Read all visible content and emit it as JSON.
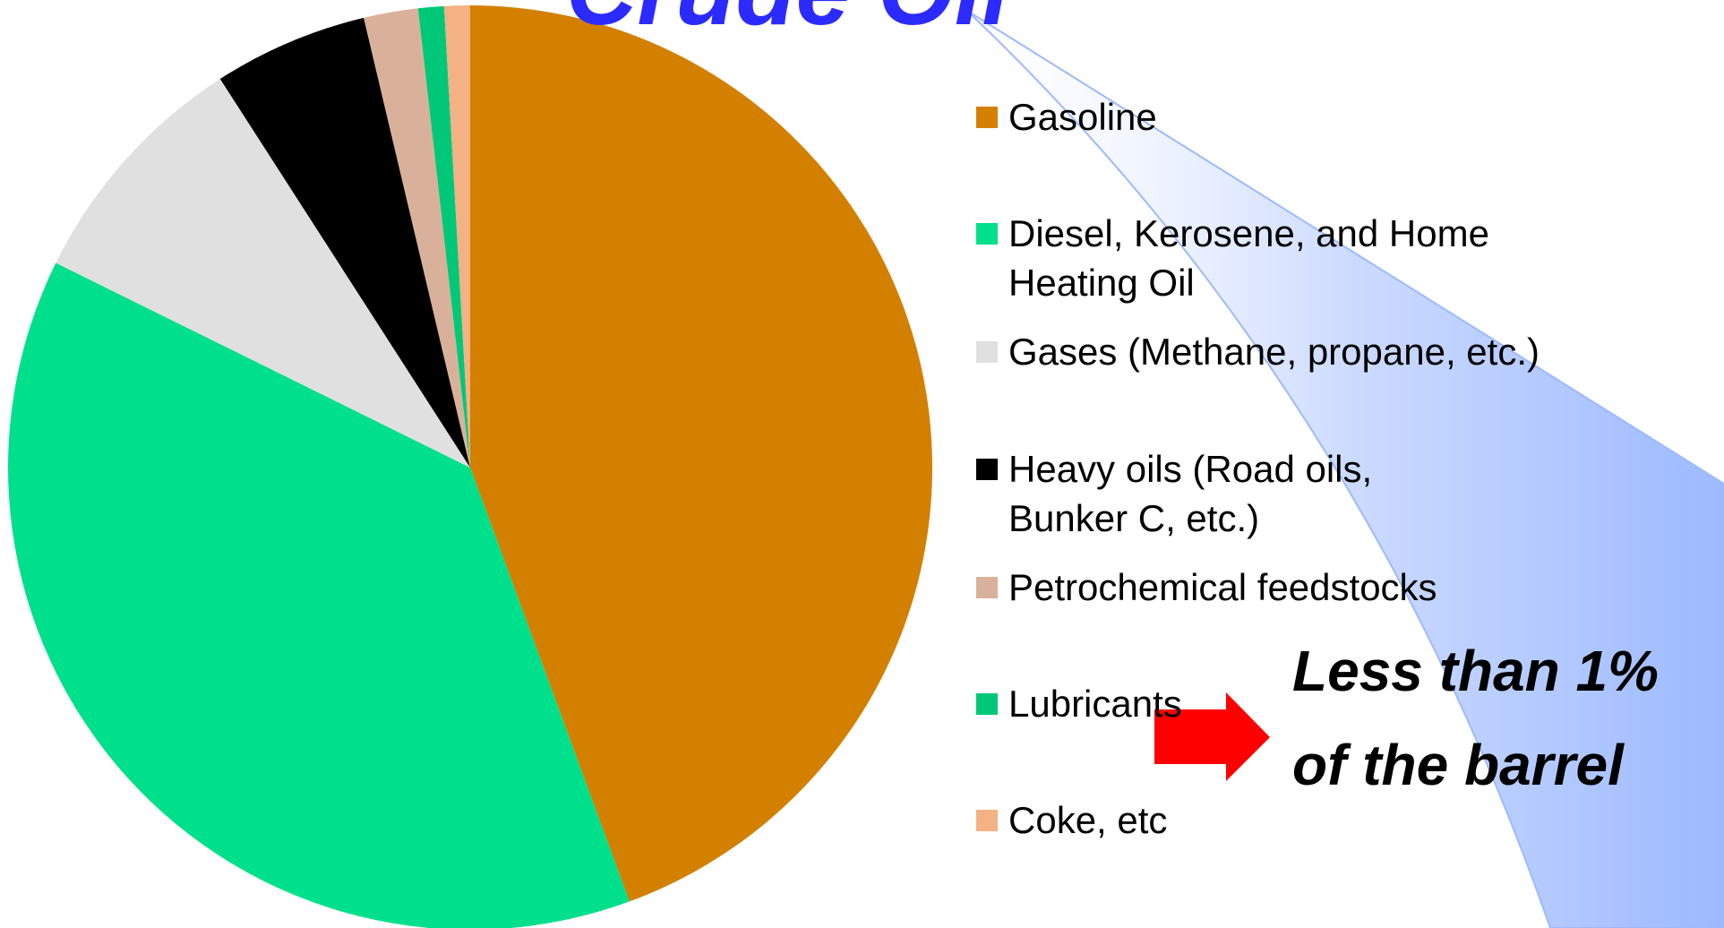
{
  "chart_data": {
    "type": "pie",
    "title": "Crude Oil",
    "categories": [
      "Gasoline",
      "Diesel, Kerosene, and Home Heating Oil",
      "Gases (Methane, propane, etc.)",
      "Heavy oils (Road oils, Bunker C, etc.)",
      "Petrochemical feedstocks",
      "Lubricants",
      "Coke, etc"
    ],
    "values": [
      44.4,
      37.9,
      8.6,
      5.4,
      1.9,
      0.9,
      0.9
    ],
    "colors": [
      "#d38000",
      "#00e08c",
      "#e0e0e0",
      "#000000",
      "#d9b19a",
      "#00c878",
      "#f4b183"
    ],
    "annotation": [
      "Less than 1%",
      "of the barrel"
    ]
  }
}
